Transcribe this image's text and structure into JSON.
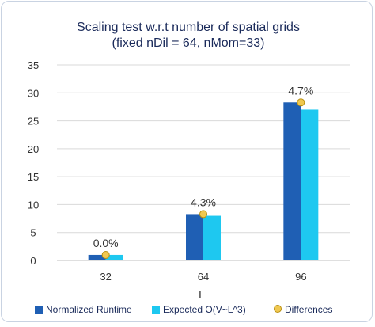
{
  "chart_data": {
    "type": "bar",
    "title": "Scaling test w.r.t number of spatial grids",
    "subtitle": "(fixed nDil = 64, nMom=33)",
    "xlabel": "L",
    "ylabel": "",
    "categories": [
      "32",
      "64",
      "96"
    ],
    "ylim": [
      0,
      35
    ],
    "yticks": [
      0,
      5,
      10,
      15,
      20,
      25,
      30,
      35
    ],
    "grid": true,
    "legend_position": "bottom",
    "series": [
      {
        "name": "Normalized Runtime",
        "values": [
          1.0,
          8.3,
          28.3
        ],
        "color": "#1f5fb4"
      },
      {
        "name": "Expected O(V~L^3)",
        "values": [
          1.0,
          8.0,
          27.0
        ],
        "color": "#1ec8f0"
      }
    ],
    "differences": {
      "name": "Differences",
      "values": [
        1.0,
        8.3,
        28.3
      ],
      "labels": [
        "0.0%",
        "4.3%",
        "4.7%"
      ],
      "marker_color": "#f0c850",
      "marker_edge": "#b88f10"
    }
  }
}
